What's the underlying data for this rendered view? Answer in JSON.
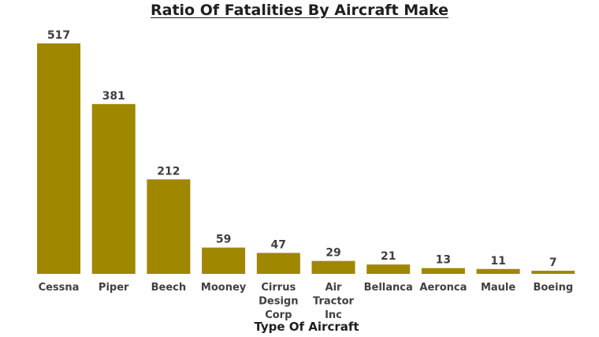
{
  "chart_data": {
    "type": "bar",
    "title": "Ratio Of Fatalities By Aircraft Make",
    "xlabel": "Type Of Aircraft",
    "ylabel": "",
    "categories": [
      "Cessna",
      "Piper",
      "Beech",
      "Mooney",
      "Cirrus Design Corp",
      "Air Tractor Inc",
      "Bellanca",
      "Aeronca",
      "Maule",
      "Boeing"
    ],
    "values": [
      517,
      381,
      212,
      59,
      47,
      29,
      21,
      13,
      11,
      7
    ],
    "ylim": [
      0,
      517
    ],
    "grid": false,
    "data_labels": true,
    "bar_color": "#a08700"
  }
}
